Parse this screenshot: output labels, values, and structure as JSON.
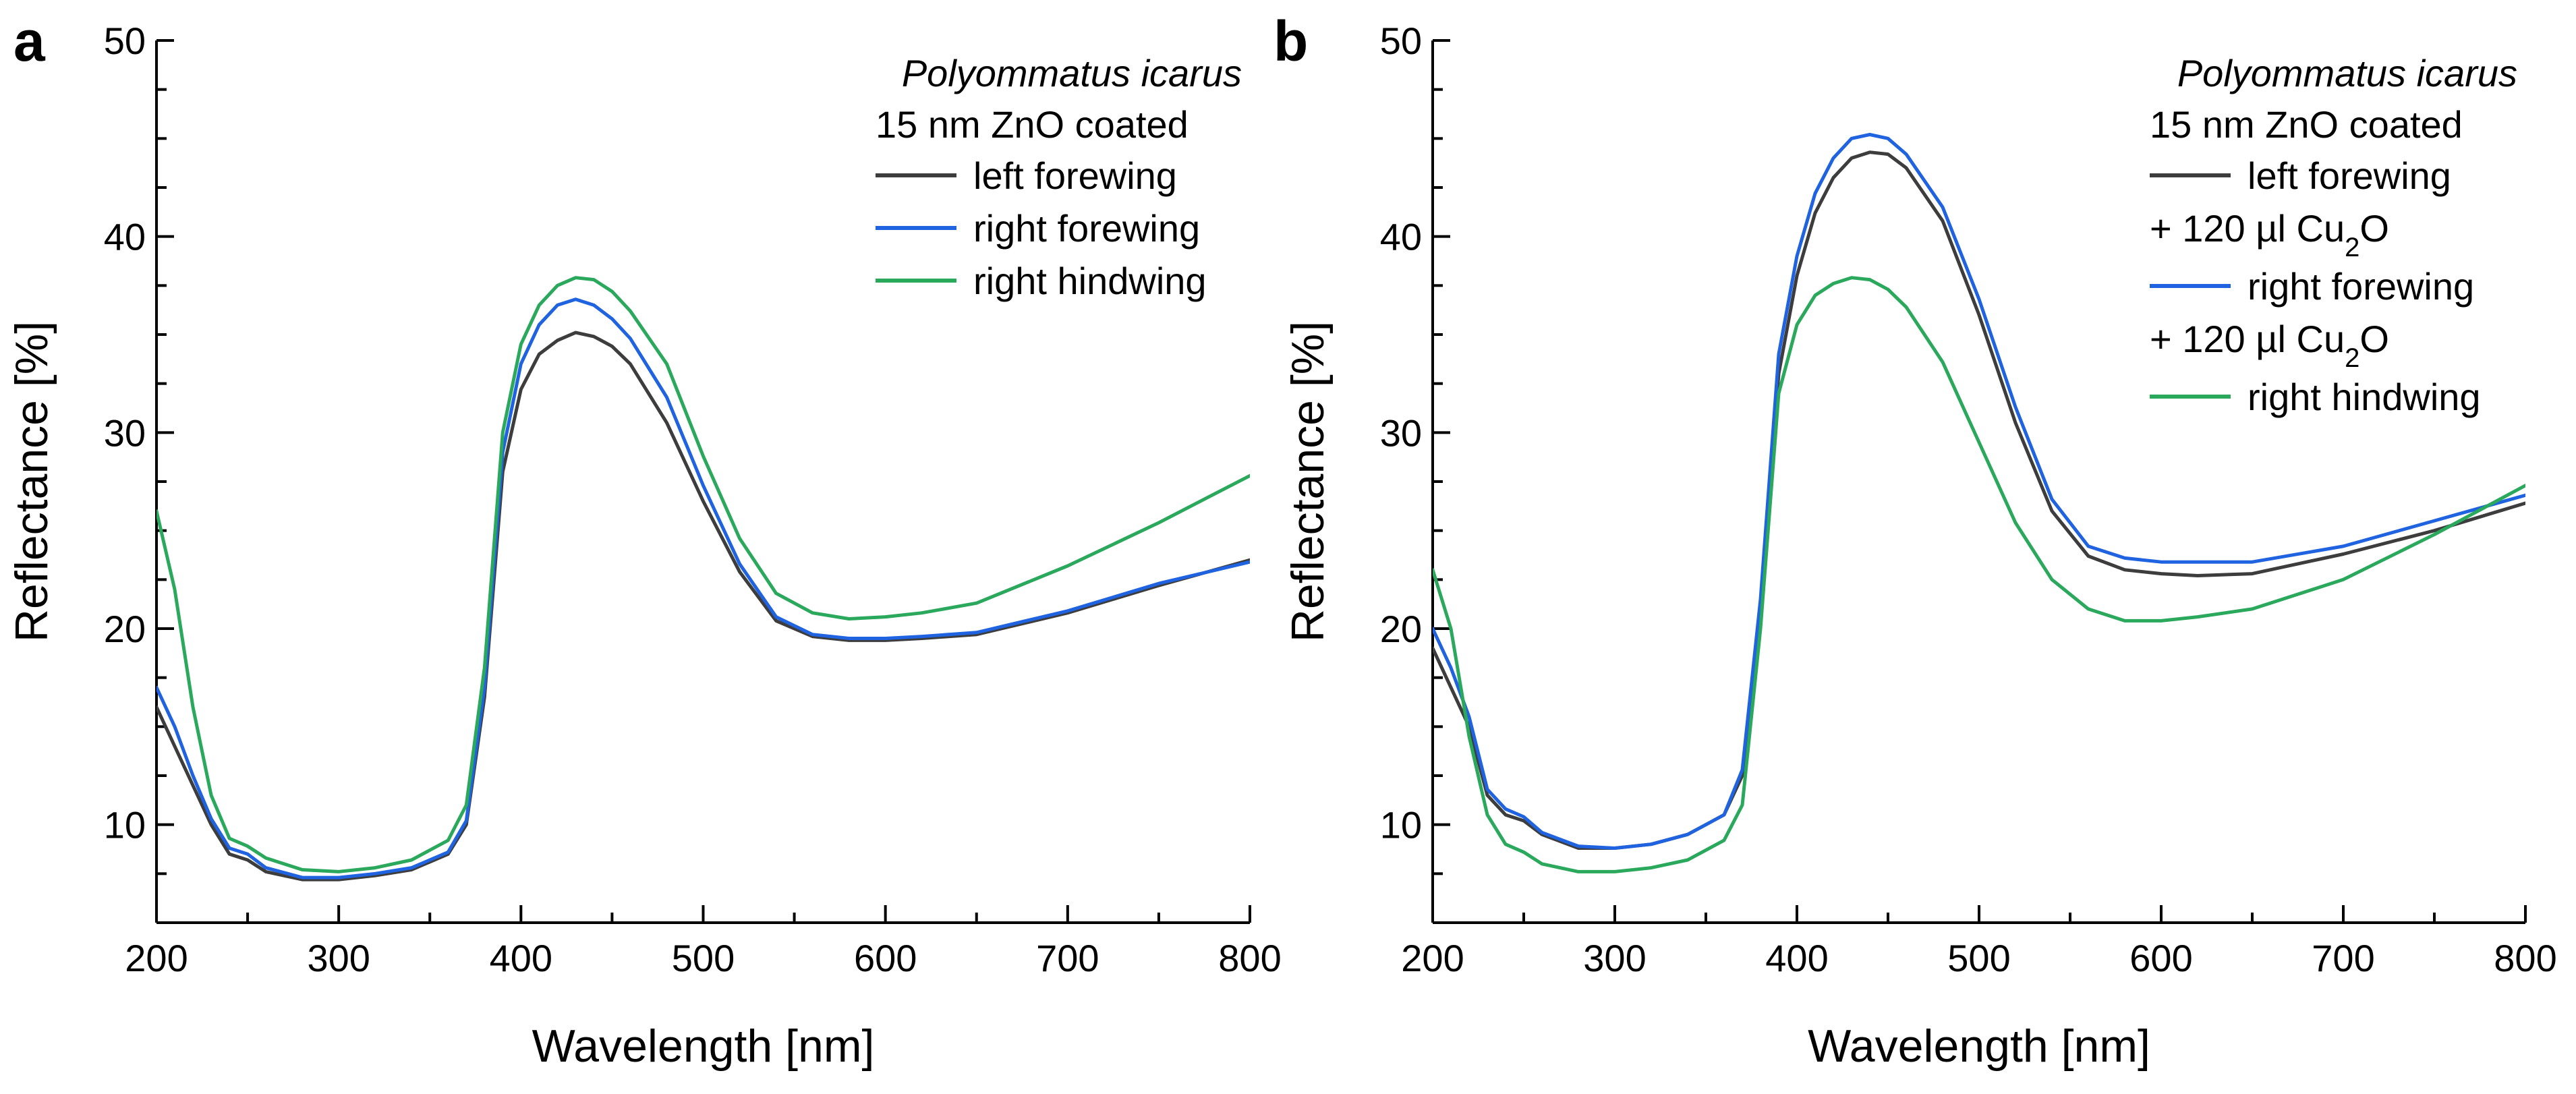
{
  "chart_data": [
    {
      "panel": "a",
      "type": "line",
      "xlabel": "Wavelength [nm]",
      "ylabel": "Reflectance [%]",
      "xlim": [
        200,
        800
      ],
      "ylim": [
        5,
        50
      ],
      "xticks": [
        200,
        300,
        400,
        500,
        600,
        700,
        800
      ],
      "yticks": [
        10,
        20,
        30,
        40,
        50
      ],
      "legend": {
        "title": "Polyommatus icarus",
        "subtitle": "15 nm ZnO coated",
        "placement": "top-right"
      },
      "x": [
        200,
        210,
        220,
        230,
        240,
        250,
        260,
        280,
        300,
        320,
        340,
        360,
        370,
        380,
        390,
        400,
        410,
        420,
        430,
        440,
        450,
        460,
        480,
        500,
        520,
        540,
        560,
        580,
        600,
        620,
        650,
        700,
        750,
        800
      ],
      "series": [
        {
          "name": "left forewing",
          "color": "#3d3d3d",
          "values": [
            16,
            14,
            12,
            10,
            8.5,
            8.2,
            7.6,
            7.2,
            7.2,
            7.4,
            7.7,
            8.5,
            10,
            16.5,
            28,
            32.2,
            34,
            34.7,
            35.1,
            34.9,
            34.4,
            33.5,
            30.5,
            26.5,
            22.9,
            20.4,
            19.6,
            19.4,
            19.4,
            19.5,
            19.7,
            20.8,
            22.2,
            23.5
          ]
        },
        {
          "name": "right forewing",
          "color": "#1f63e0",
          "values": [
            17,
            15,
            12.5,
            10.3,
            8.8,
            8.5,
            7.8,
            7.3,
            7.3,
            7.5,
            7.8,
            8.6,
            10.2,
            17,
            29,
            33.5,
            35.5,
            36.5,
            36.8,
            36.5,
            35.8,
            34.8,
            31.8,
            27.3,
            23.3,
            20.6,
            19.7,
            19.5,
            19.5,
            19.6,
            19.8,
            20.9,
            22.3,
            23.4
          ]
        },
        {
          "name": "right hindwing",
          "color": "#2aa85c",
          "values": [
            26,
            22,
            16,
            11.5,
            9.3,
            8.9,
            8.3,
            7.7,
            7.6,
            7.8,
            8.2,
            9.2,
            11,
            18,
            30,
            34.5,
            36.5,
            37.5,
            37.9,
            37.8,
            37.2,
            36.2,
            33.5,
            28.8,
            24.6,
            21.8,
            20.8,
            20.5,
            20.6,
            20.8,
            21.3,
            23.2,
            25.4,
            27.8
          ]
        }
      ]
    },
    {
      "panel": "b",
      "type": "line",
      "xlabel": "Wavelength [nm]",
      "ylabel": "Reflectance [%]",
      "xlim": [
        200,
        800
      ],
      "ylim": [
        5,
        50
      ],
      "xticks": [
        200,
        300,
        400,
        500,
        600,
        700,
        800
      ],
      "yticks": [
        10,
        20,
        30,
        40,
        50
      ],
      "legend": {
        "title": "Polyommatus icarus",
        "subtitle": "15 nm ZnO coated",
        "placement": "top-right",
        "additive_prefix": "+ 120 ",
        "additive_unit": "µl Cu",
        "additive_sub": "2",
        "additive_suffix": "O"
      },
      "x": [
        200,
        210,
        220,
        230,
        240,
        250,
        260,
        280,
        300,
        320,
        340,
        360,
        370,
        380,
        390,
        400,
        410,
        420,
        430,
        440,
        450,
        460,
        480,
        500,
        520,
        540,
        560,
        580,
        600,
        620,
        650,
        700,
        750,
        800
      ],
      "series": [
        {
          "name": "left forewing",
          "color": "#3d3d3d",
          "values": [
            19,
            17,
            15,
            11.5,
            10.5,
            10.2,
            9.5,
            8.8,
            8.8,
            9,
            9.5,
            10.5,
            12.5,
            21,
            33,
            38,
            41.2,
            43,
            44,
            44.3,
            44.2,
            43.5,
            40.8,
            36,
            30.5,
            26,
            23.7,
            23,
            22.8,
            22.7,
            22.8,
            23.8,
            25,
            26.4
          ]
        },
        {
          "name": "right forewing",
          "color": "#1f63e0",
          "values": [
            20,
            18,
            15.5,
            11.8,
            10.8,
            10.4,
            9.6,
            8.9,
            8.8,
            9,
            9.5,
            10.5,
            12.8,
            21.5,
            34,
            39,
            42.2,
            44,
            45,
            45.2,
            45,
            44.2,
            41.5,
            36.8,
            31.3,
            26.6,
            24.2,
            23.6,
            23.4,
            23.4,
            23.4,
            24.2,
            25.5,
            26.8
          ]
        },
        {
          "name": "right hindwing",
          "color": "#2aa85c",
          "values": [
            23,
            20,
            14.5,
            10.5,
            9,
            8.6,
            8,
            7.6,
            7.6,
            7.8,
            8.2,
            9.2,
            11,
            20,
            32,
            35.5,
            37,
            37.6,
            37.9,
            37.8,
            37.3,
            36.4,
            33.6,
            29.5,
            25.4,
            22.5,
            21,
            20.4,
            20.4,
            20.6,
            21,
            22.5,
            24.8,
            27.3
          ]
        }
      ]
    }
  ]
}
